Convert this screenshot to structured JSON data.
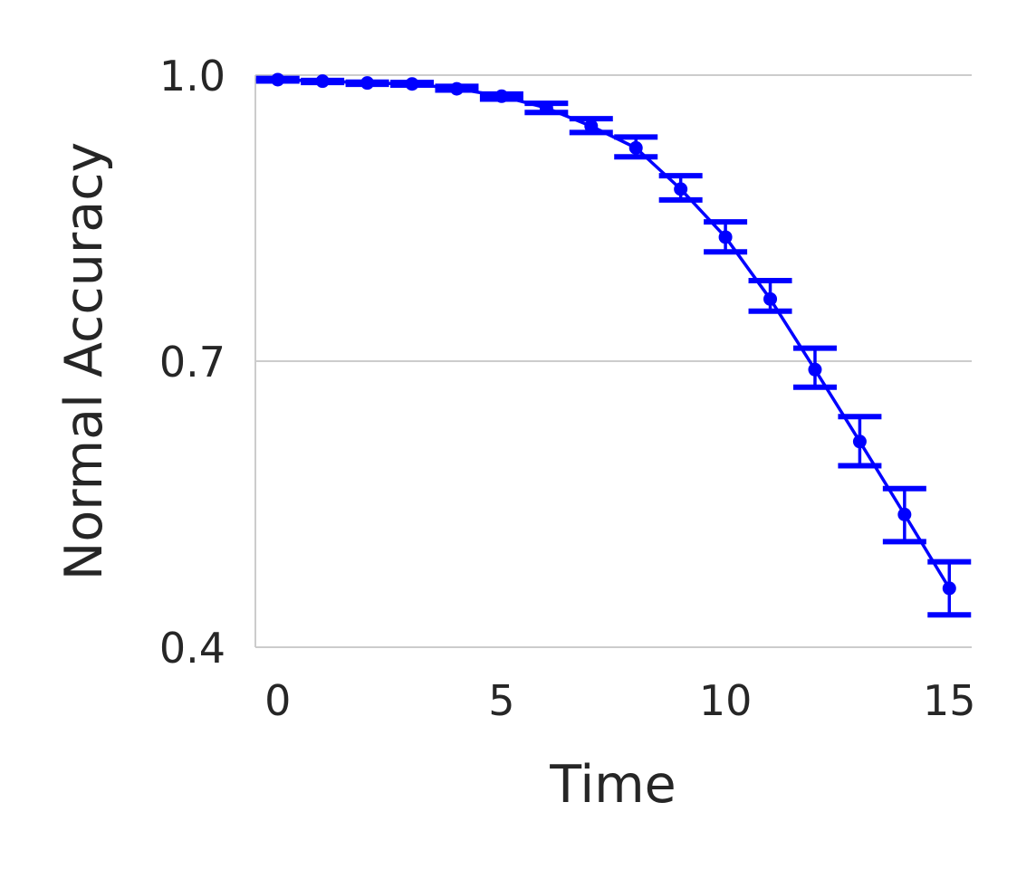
{
  "chart_data": {
    "type": "line",
    "title": "",
    "xlabel": "Time",
    "ylabel": "Normal Accuracy",
    "xlim": [
      -0.5,
      15.5
    ],
    "ylim": [
      0.4,
      1.0
    ],
    "xticks": [
      0,
      5,
      10,
      15
    ],
    "xtick_labels": [
      "0",
      "5",
      "10",
      "15"
    ],
    "yticks": [
      0.4,
      0.7,
      1.0
    ],
    "ytick_labels": [
      "0.4",
      "0.7",
      "1.0"
    ],
    "grid": "horizontal",
    "legend": "none",
    "series": [
      {
        "color": "#0000ff",
        "x": [
          0,
          1,
          2,
          3,
          4,
          5,
          6,
          7,
          8,
          9,
          10,
          11,
          12,
          13,
          14,
          15
        ],
        "y": [
          0.9953,
          0.9937,
          0.9918,
          0.9908,
          0.9857,
          0.9779,
          0.9656,
          0.9465,
          0.9237,
          0.8805,
          0.8301,
          0.7652,
          0.6912,
          0.6157,
          0.5392,
          0.4618
        ],
        "err_low": [
          0.9938,
          0.9923,
          0.9904,
          0.9895,
          0.9843,
          0.9749,
          0.9608,
          0.9398,
          0.9143,
          0.8691,
          0.8146,
          0.7524,
          0.6727,
          0.5904,
          0.5107,
          0.4339
        ],
        "err_high": [
          0.9965,
          0.9944,
          0.9927,
          0.9923,
          0.9883,
          0.9802,
          0.9704,
          0.9543,
          0.9351,
          0.8945,
          0.8461,
          0.7845,
          0.7137,
          0.6419,
          0.5664,
          0.4896
        ]
      }
    ]
  }
}
